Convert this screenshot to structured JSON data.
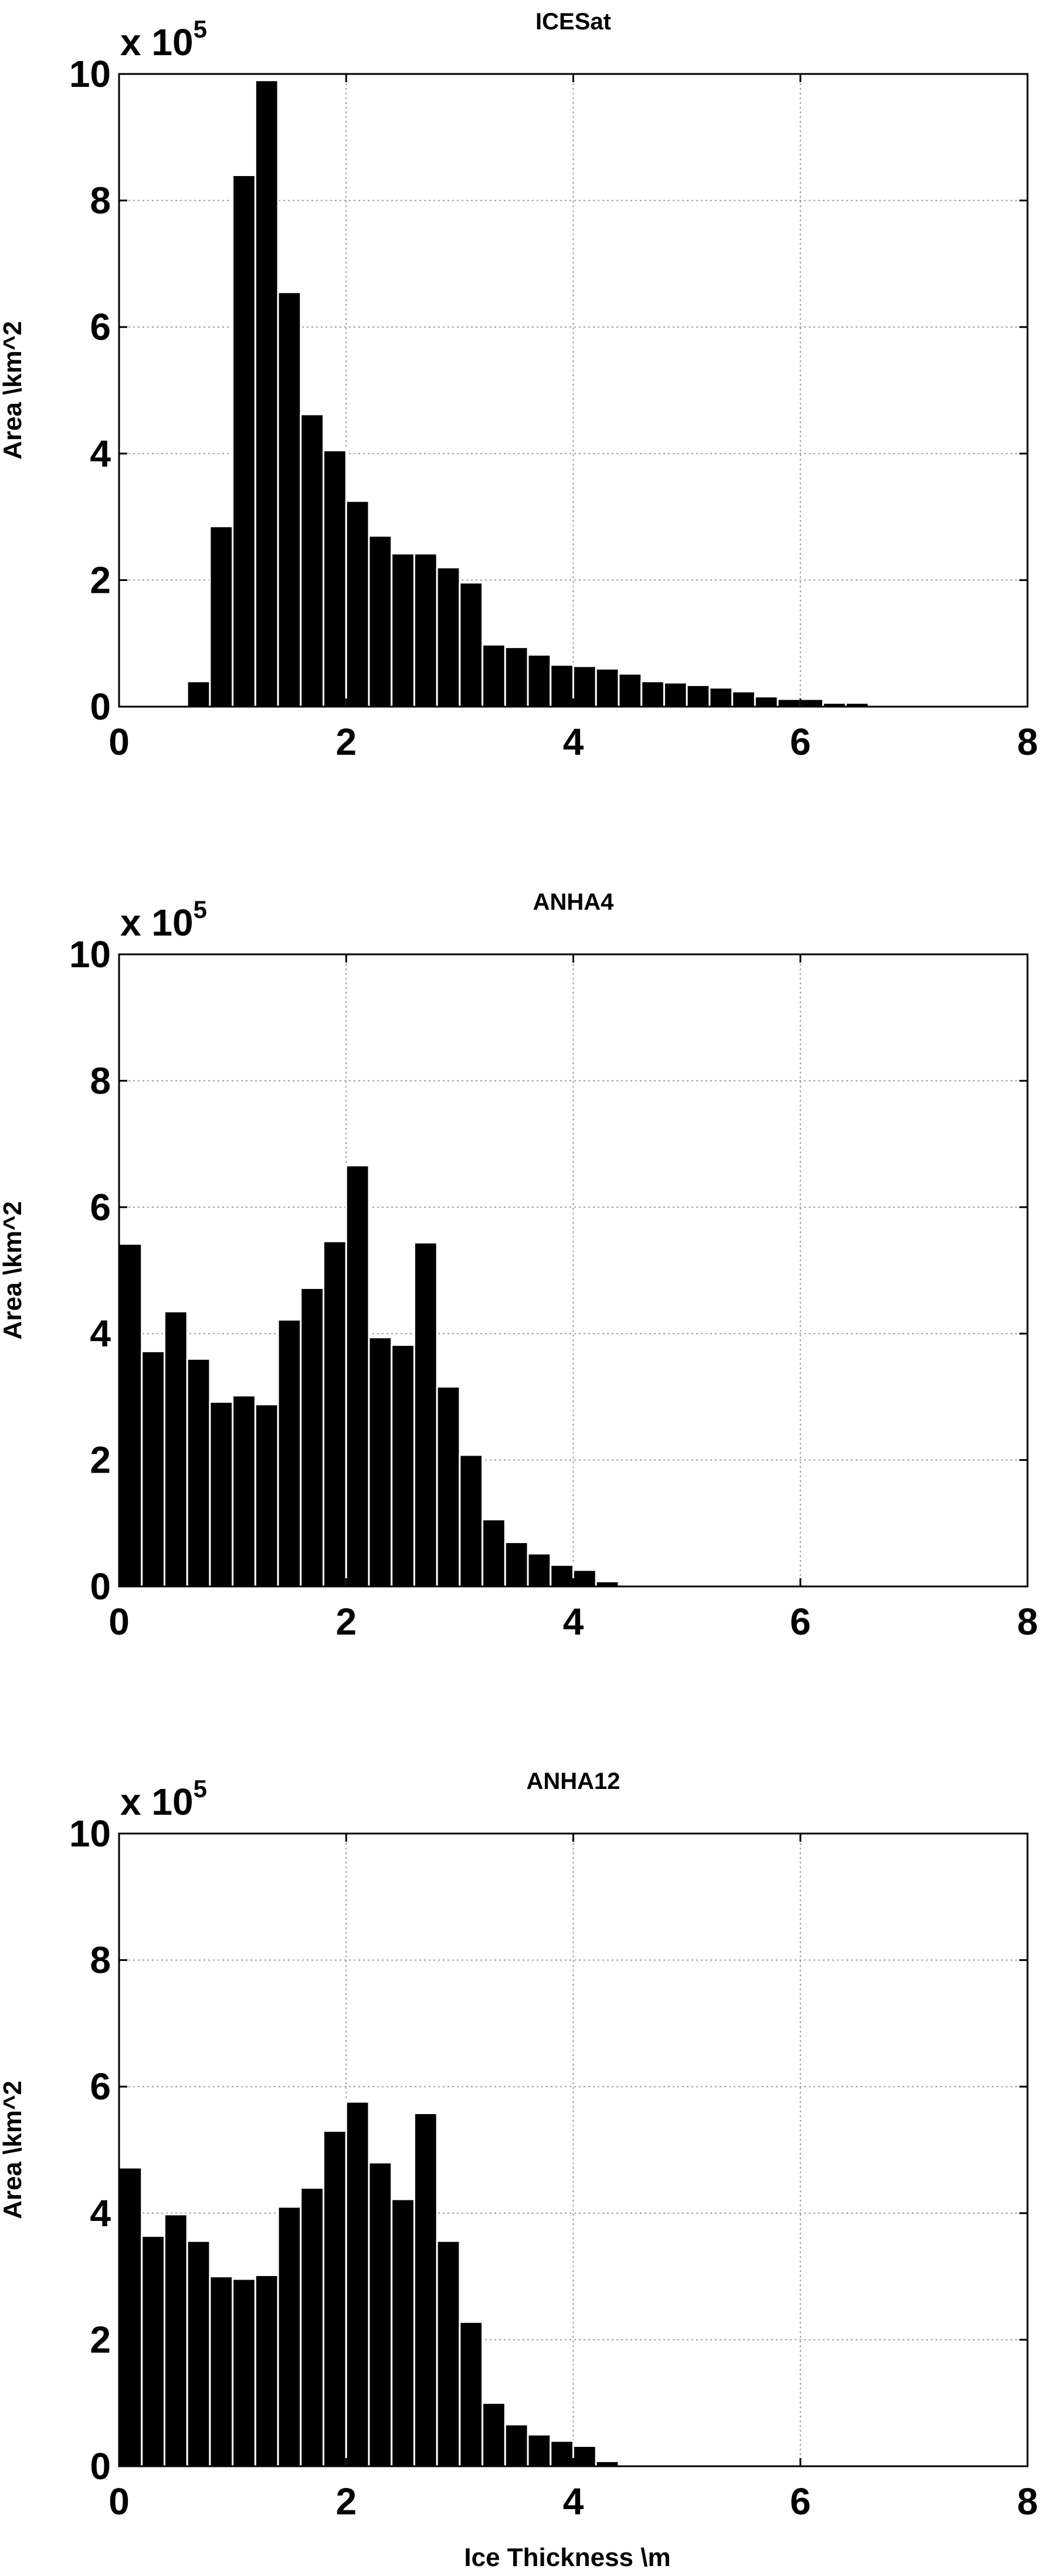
{
  "chart_data": [
    {
      "type": "bar",
      "title": "ICESat",
      "ylabel": "Area \\km^2",
      "xlabel": "",
      "y_multiplier": "x 10",
      "y_multiplier_exponent": "5",
      "xlim": [
        0,
        8
      ],
      "ylim": [
        0,
        10
      ],
      "x_ticks": [
        "0",
        "2",
        "4",
        "6",
        "8"
      ],
      "y_ticks": [
        "0",
        "2",
        "4",
        "6",
        "8",
        "10"
      ],
      "grid": true,
      "bin_width": 0.2,
      "x": [
        0.1,
        0.3,
        0.5,
        0.7,
        0.9,
        1.1,
        1.3,
        1.5,
        1.7,
        1.9,
        2.1,
        2.3,
        2.5,
        2.7,
        2.9,
        3.1,
        3.3,
        3.5,
        3.7,
        3.9,
        4.1,
        4.3,
        4.5,
        4.7,
        4.9,
        5.1,
        5.3,
        5.5,
        5.7,
        5.9,
        6.1,
        6.3,
        6.5,
        6.7,
        6.9,
        7.1,
        7.3,
        7.5,
        7.7,
        7.9
      ],
      "values": [
        0,
        0,
        0,
        0.4,
        2.85,
        8.4,
        9.9,
        6.55,
        4.62,
        4.05,
        3.25,
        2.7,
        2.42,
        2.42,
        2.2,
        1.96,
        0.98,
        0.94,
        0.82,
        0.66,
        0.64,
        0.6,
        0.52,
        0.4,
        0.38,
        0.34,
        0.3,
        0.24,
        0.16,
        0.12,
        0.12,
        0.06,
        0.06,
        0.02,
        0,
        0,
        0,
        0,
        0,
        0
      ]
    },
    {
      "type": "bar",
      "title": "ANHA4",
      "ylabel": "Area \\km^2",
      "xlabel": "",
      "y_multiplier": "x 10",
      "y_multiplier_exponent": "5",
      "xlim": [
        0,
        8
      ],
      "ylim": [
        0,
        10
      ],
      "x_ticks": [
        "0",
        "2",
        "4",
        "6",
        "8"
      ],
      "y_ticks": [
        "0",
        "2",
        "4",
        "6",
        "8",
        "10"
      ],
      "grid": true,
      "bin_width": 0.2,
      "x": [
        0.1,
        0.3,
        0.5,
        0.7,
        0.9,
        1.1,
        1.3,
        1.5,
        1.7,
        1.9,
        2.1,
        2.3,
        2.5,
        2.7,
        2.9,
        3.1,
        3.3,
        3.5,
        3.7,
        3.9,
        4.1,
        4.3,
        4.5,
        4.7,
        4.9,
        5.1,
        5.3,
        5.5,
        5.7,
        5.9,
        6.1,
        6.3,
        6.5,
        6.7,
        6.9,
        7.1,
        7.3,
        7.5,
        7.7,
        7.9
      ],
      "values": [
        5.42,
        3.72,
        4.35,
        3.6,
        2.92,
        3.02,
        2.88,
        4.22,
        4.72,
        5.46,
        6.66,
        3.94,
        3.82,
        5.44,
        3.16,
        2.08,
        1.06,
        0.7,
        0.52,
        0.34,
        0.26,
        0.08,
        0.02,
        0,
        0,
        0,
        0,
        0,
        0,
        0,
        0,
        0,
        0,
        0,
        0,
        0,
        0,
        0,
        0,
        0
      ]
    },
    {
      "type": "bar",
      "title": "ANHA12",
      "ylabel": "Area \\km^2",
      "xlabel": "Ice Thickness \\m",
      "y_multiplier": "x 10",
      "y_multiplier_exponent": "5",
      "xlim": [
        0,
        8
      ],
      "ylim": [
        0,
        10
      ],
      "x_ticks": [
        "0",
        "2",
        "4",
        "6",
        "8"
      ],
      "y_ticks": [
        "0",
        "2",
        "4",
        "6",
        "8",
        "10"
      ],
      "grid": true,
      "bin_width": 0.2,
      "x": [
        0.1,
        0.3,
        0.5,
        0.7,
        0.9,
        1.1,
        1.3,
        1.5,
        1.7,
        1.9,
        2.1,
        2.3,
        2.5,
        2.7,
        2.9,
        3.1,
        3.3,
        3.5,
        3.7,
        3.9,
        4.1,
        4.3,
        4.5,
        4.7,
        4.9,
        5.1,
        5.3,
        5.5,
        5.7,
        5.9,
        6.1,
        6.3,
        6.5,
        6.7,
        6.9,
        7.1,
        7.3,
        7.5,
        7.7,
        7.9
      ],
      "values": [
        4.72,
        3.64,
        3.98,
        3.56,
        3.0,
        2.96,
        3.02,
        4.1,
        4.4,
        5.3,
        5.76,
        4.8,
        4.22,
        5.58,
        3.56,
        2.28,
        1.0,
        0.66,
        0.5,
        0.4,
        0.32,
        0.08,
        0.02,
        0,
        0,
        0,
        0,
        0,
        0,
        0,
        0,
        0,
        0,
        0,
        0,
        0,
        0,
        0,
        0,
        0
      ]
    }
  ]
}
